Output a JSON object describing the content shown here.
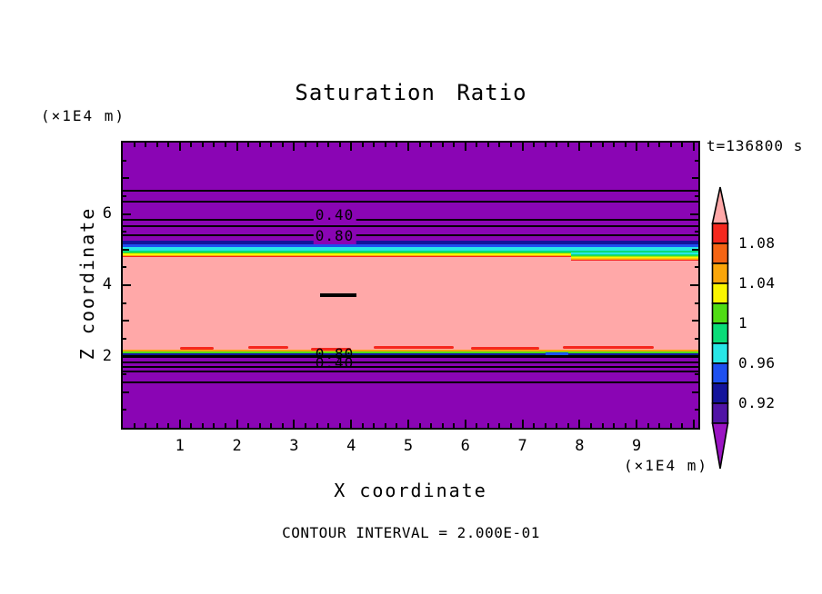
{
  "chart_data": {
    "type": "heatmap",
    "title": "Saturation Ratio",
    "timestamp": "t=136800 s",
    "xlabel": "X coordinate",
    "ylabel": "Z coordinate",
    "y_unit_label": "(×1E4 m)",
    "x_unit_label": "(×1E4 m)",
    "footer": "CONTOUR INTERVAL = 2.000E-01",
    "xlim": [
      0,
      10.08
    ],
    "ylim": [
      0,
      8
    ],
    "x_labeled_ticks": [
      1,
      2,
      3,
      4,
      5,
      6,
      7,
      8,
      9
    ],
    "y_labeled_ticks": [
      2,
      4,
      6
    ],
    "x_minor_step": 0.2,
    "y_minor_step": 0.5,
    "palette": {
      "pink": "#FFA8A8",
      "red": "#F5281E",
      "orangered": "#F56414",
      "orange": "#FAA50A",
      "yellow": "#FAF500",
      "green": "#50DC14",
      "springgreen": "#0ADC78",
      "cyan": "#28E6E6",
      "blue": "#1E50F0",
      "navy": "#14149B",
      "violet": "#5014A5",
      "magenta": "#9B14C3",
      "background": "#8A05B4",
      "line": "#000000"
    },
    "field_layers": [
      {
        "color": "navy",
        "y_top": 5.24,
        "y_bot": 5.14
      },
      {
        "color": "blue",
        "y_top": 5.14,
        "y_bot": 5.06
      },
      {
        "color": "cyan",
        "y_top": 5.06,
        "y_bot": 4.96
      },
      {
        "color": "springgreen",
        "y_top": 4.96,
        "y_bot": 4.91
      },
      {
        "color": "green",
        "y_top": 4.91,
        "y_bot": 4.88
      },
      {
        "color": "yellow",
        "y_top": 4.88,
        "y_bot": 4.85
      },
      {
        "color": "orange",
        "y_top": 4.85,
        "y_bot": 4.82
      },
      {
        "color": "red",
        "y_top": 4.82,
        "y_bot": 4.78
      },
      {
        "color": "pink",
        "y_top": 4.78,
        "y_bot": 2.18
      },
      {
        "color": "orange",
        "y_top": 2.18,
        "y_bot": 2.14
      },
      {
        "color": "green",
        "y_top": 2.14,
        "y_bot": 2.09
      },
      {
        "color": "navy",
        "y_top": 2.09,
        "y_bot": 2.04
      },
      {
        "color": "line",
        "y_top": 2.04,
        "y_bot": 1.97
      }
    ],
    "contour_lines_y": [
      6.67,
      6.37,
      5.86,
      5.68,
      5.43,
      1.85,
      1.72,
      1.6,
      1.29
    ],
    "contour_labels": [
      {
        "text": "0.40",
        "x": 3.71,
        "y": 5.96,
        "masked": true
      },
      {
        "text": "0.80",
        "x": 3.71,
        "y": 5.38,
        "masked": true
      },
      {
        "text": "0.80",
        "x": 3.71,
        "y": 2.06,
        "masked": false
      },
      {
        "text": "0.40",
        "x": 3.71,
        "y": 1.81,
        "masked": false
      }
    ],
    "annotations": {
      "center_dash": {
        "x0": 3.46,
        "x1": 4.1,
        "y": 3.77
      },
      "red_streaks": [
        {
          "x0": 1.0,
          "x1": 1.6,
          "y": 2.26
        },
        {
          "x0": 2.2,
          "x1": 2.9,
          "y": 2.3
        },
        {
          "x0": 3.3,
          "x1": 4.0,
          "y": 2.24
        },
        {
          "x0": 4.4,
          "x1": 5.8,
          "y": 2.3
        },
        {
          "x0": 6.1,
          "x1": 7.3,
          "y": 2.26
        },
        {
          "x0": 7.7,
          "x1": 9.3,
          "y": 2.29
        }
      ],
      "blue_segment": {
        "x0": 7.4,
        "x1": 7.8,
        "y": 2.12
      },
      "right_wedge": {
        "x0": 7.85,
        "x1": 10.08,
        "y_top": 4.92,
        "y_bot": 4.7
      }
    },
    "colorbar": {
      "cells": [
        "red",
        "orangered",
        "orange",
        "yellow",
        "green",
        "springgreen",
        "cyan",
        "blue",
        "navy",
        "violet"
      ],
      "labels": [
        {
          "text": "1.08",
          "boundary_index": 1
        },
        {
          "text": "1.04",
          "boundary_index": 3
        },
        {
          "text": "1",
          "boundary_index": 5
        },
        {
          "text": "0.96",
          "boundary_index": 7
        },
        {
          "text": "0.92",
          "boundary_index": 9
        }
      ],
      "arrow_up_color": "pink",
      "arrow_down_color": "magenta"
    }
  }
}
